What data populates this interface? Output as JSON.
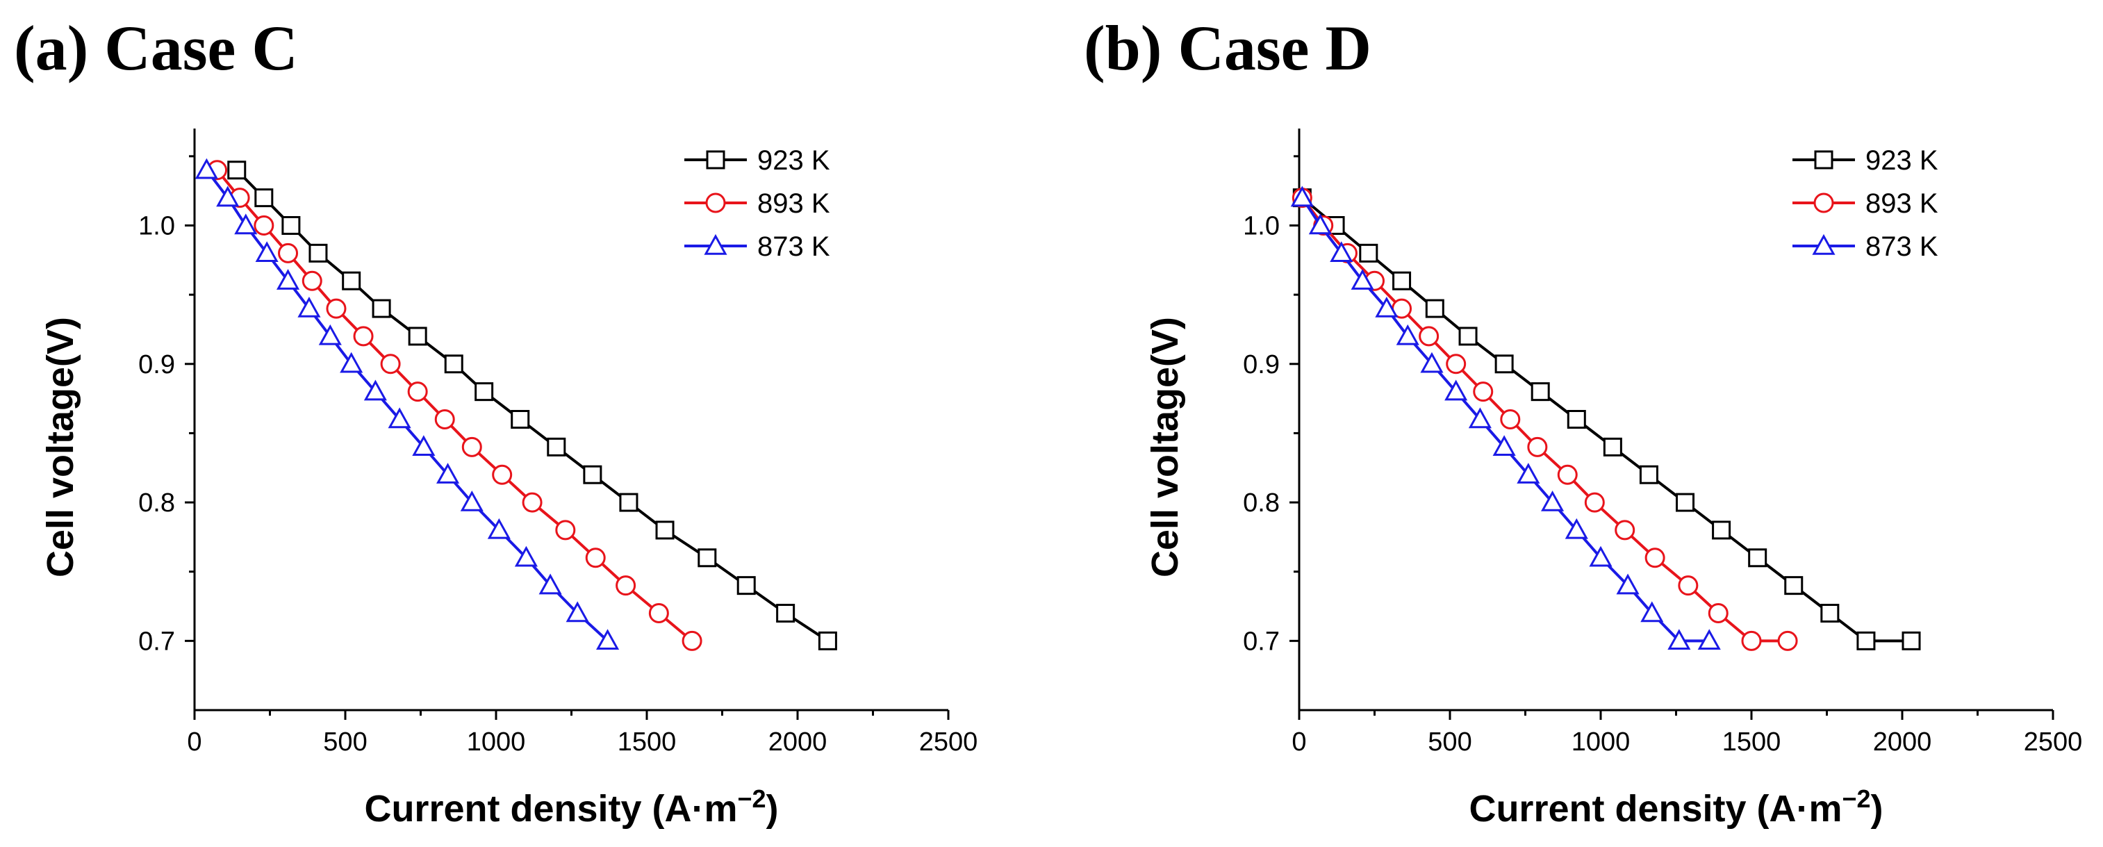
{
  "colors": {
    "923 K": "#000000",
    "893 K": "#e8141b",
    "873 K": "#1a1ae6"
  },
  "chart_data": [
    {
      "type": "line",
      "panel_title": "(a) Case C",
      "xlabel": "Current density (A·m",
      "xlabel_sup": "−2",
      "xlabel_end": ")",
      "ylabel": "Cell voltage(V)",
      "xlim": [
        0,
        2500
      ],
      "ylim": [
        0.65,
        1.07
      ],
      "xticks": [
        "0",
        "500",
        "1000",
        "1500",
        "2000",
        "2500"
      ],
      "yticks": [
        "0.7",
        "0.8",
        "0.9",
        "1.0"
      ],
      "legend_position": "top-right",
      "series": [
        {
          "name": "923 K",
          "marker": "square",
          "x": [
            140,
            230,
            320,
            410,
            520,
            620,
            740,
            860,
            960,
            1080,
            1200,
            1320,
            1440,
            1560,
            1700,
            1830,
            1960,
            2100
          ],
          "y": [
            1.04,
            1.02,
            1.0,
            0.98,
            0.96,
            0.94,
            0.92,
            0.9,
            0.88,
            0.86,
            0.84,
            0.82,
            0.8,
            0.78,
            0.76,
            0.74,
            0.72,
            0.7
          ]
        },
        {
          "name": "893 K",
          "marker": "circle",
          "x": [
            75,
            150,
            230,
            310,
            390,
            470,
            560,
            650,
            740,
            830,
            920,
            1020,
            1120,
            1230,
            1330,
            1430,
            1540,
            1650
          ],
          "y": [
            1.04,
            1.02,
            1.0,
            0.98,
            0.96,
            0.94,
            0.92,
            0.9,
            0.88,
            0.86,
            0.84,
            0.82,
            0.8,
            0.78,
            0.76,
            0.74,
            0.72,
            0.7
          ]
        },
        {
          "name": "873 K",
          "marker": "triangle",
          "x": [
            40,
            110,
            170,
            240,
            310,
            380,
            450,
            520,
            600,
            680,
            760,
            840,
            920,
            1010,
            1100,
            1180,
            1270,
            1370
          ],
          "y": [
            1.04,
            1.02,
            1.0,
            0.98,
            0.96,
            0.94,
            0.92,
            0.9,
            0.88,
            0.86,
            0.84,
            0.82,
            0.8,
            0.78,
            0.76,
            0.74,
            0.72,
            0.7
          ]
        }
      ]
    },
    {
      "type": "line",
      "panel_title": "(b) Case D",
      "xlabel": "Current density (A·m",
      "xlabel_sup": "−2",
      "xlabel_end": ")",
      "ylabel": "Cell voltage(V)",
      "xlim": [
        0,
        2500
      ],
      "ylim": [
        0.65,
        1.07
      ],
      "xticks": [
        "0",
        "500",
        "1000",
        "1500",
        "2000",
        "2500"
      ],
      "yticks": [
        "0.7",
        "0.8",
        "0.9",
        "1.0"
      ],
      "legend_position": "top-right",
      "series": [
        {
          "name": "923 K",
          "marker": "square",
          "x": [
            10,
            120,
            230,
            340,
            450,
            560,
            680,
            800,
            920,
            1040,
            1160,
            1280,
            1400,
            1520,
            1640,
            1760,
            1880,
            2030
          ],
          "y": [
            1.02,
            1.0,
            0.98,
            0.96,
            0.94,
            0.92,
            0.9,
            0.88,
            0.86,
            0.84,
            0.82,
            0.8,
            0.78,
            0.76,
            0.74,
            0.72,
            0.7,
            0.7
          ]
        },
        {
          "name": "893 K",
          "marker": "circle",
          "x": [
            10,
            80,
            160,
            250,
            340,
            430,
            520,
            610,
            700,
            790,
            890,
            980,
            1080,
            1180,
            1290,
            1390,
            1500,
            1620
          ],
          "y": [
            1.02,
            1.0,
            0.98,
            0.96,
            0.94,
            0.92,
            0.9,
            0.88,
            0.86,
            0.84,
            0.82,
            0.8,
            0.78,
            0.76,
            0.74,
            0.72,
            0.7,
            0.7
          ]
        },
        {
          "name": "873 K",
          "marker": "triangle",
          "x": [
            10,
            70,
            140,
            210,
            290,
            360,
            440,
            520,
            600,
            680,
            760,
            840,
            920,
            1000,
            1090,
            1170,
            1260,
            1360
          ],
          "y": [
            1.02,
            1.0,
            0.98,
            0.96,
            0.94,
            0.92,
            0.9,
            0.88,
            0.86,
            0.84,
            0.82,
            0.8,
            0.78,
            0.76,
            0.74,
            0.72,
            0.7,
            0.7
          ]
        }
      ]
    }
  ]
}
